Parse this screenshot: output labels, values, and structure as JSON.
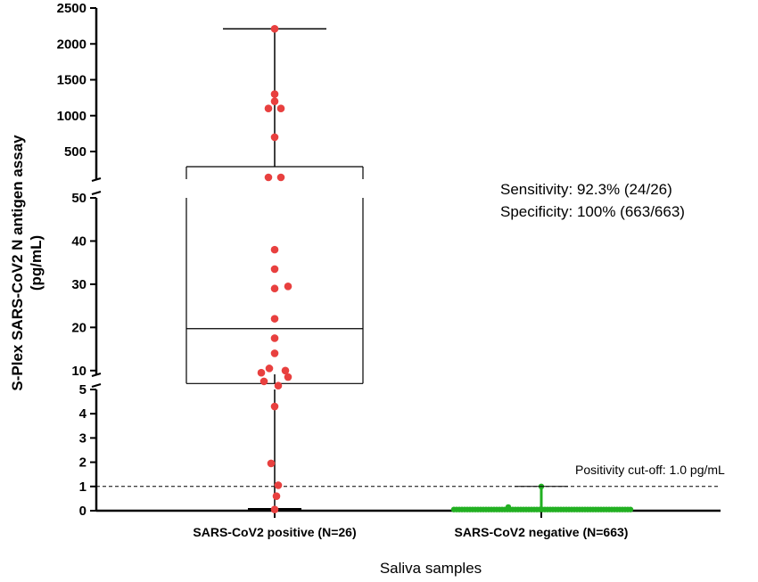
{
  "chart_data": {
    "type": "scatter",
    "subtype": "box-and-dot plot with broken y-axis",
    "xlabel": "Saliva samples",
    "ylabel_line1": "S-Plex SARS-CoV2 N antigen assay",
    "ylabel_line2": "(pg/mL)",
    "y_axis_segments": [
      {
        "range": [
          0,
          5
        ],
        "ticks": [
          "0",
          "1",
          "2",
          "3",
          "4",
          "5"
        ]
      },
      {
        "range": [
          5,
          52
        ],
        "ticks": [
          "10",
          "20",
          "30",
          "40",
          "50"
        ]
      },
      {
        "range": [
          170,
          2500
        ],
        "ticks": [
          "500",
          "1000",
          "1500",
          "2000",
          "2500"
        ]
      }
    ],
    "categories": [
      "SARS-CoV2 positive (N=26)",
      "SARS-CoV2 negative (N=663)"
    ],
    "series": [
      {
        "category": "SARS-CoV2 positive (N=26)",
        "color": "#e8403f",
        "values": [
          0.05,
          0.6,
          1.05,
          1.95,
          4.3,
          6.5,
          7.5,
          8.5,
          9.5,
          10,
          10.5,
          14,
          17.5,
          22,
          29,
          29.5,
          33.5,
          38,
          225,
          230,
          700,
          1100,
          1100,
          1200,
          1300,
          2210
        ],
        "box": {
          "min": 0.05,
          "q1": 7,
          "median": 19.7,
          "q3": 320,
          "max": 2210
        }
      },
      {
        "category": "SARS-CoV2 negative (N=663)",
        "color": "#22b022",
        "values_summary": "663 values clustered near 0 (max about 1.0)",
        "box": {
          "min": 0.0,
          "q1": 0.0,
          "median": 0.0,
          "q3": 0.05,
          "max": 1.0
        }
      }
    ],
    "cutoff": {
      "value": 1.0,
      "label": "Positivity cut-off: 1.0 pg/mL"
    },
    "annotations": [
      "Sensitivity: 92.3% (24/26)",
      "Specificity: 100% (663/663)"
    ]
  }
}
